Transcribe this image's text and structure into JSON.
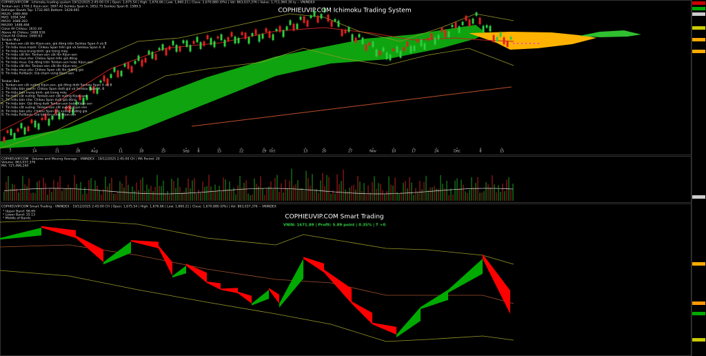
{
  "header": {
    "ichimoku_info": "COPHIEUVIP.COM - Ichimoku trading system  19/12/2025 2:45:00 CH  |  Open: 1,675.54  |  High: 1,676.66  |  Low: 1,660.21  |  Close: 1,670.880 (0%)  |  Vol: 863,037,376  |  Value: 1,711,960.30 ty  --  VNINDEX"
  },
  "ichimoku": {
    "title": "COPHIEUVIP.COM Ichimoku Trading System",
    "info_lines": [
      "Tenkan-sen: 1700.1  Kijun-sen: 1697.42  Senkou Span A: 1652.75  Senkou Span B: 1589.5",
      "Bollinger Bands Top: 1732.065  Bottom: 1628.691",
      "MA20: 1680.468",
      "MA5: 1694.544",
      "MA10: 1688.283",
      "MA200: 1488.484",
      "Close All Chikou: 1631.44",
      "Above All Chikou: 1688.916",
      "Cloud All Chikou: 1660.63",
      "Tenkan Mua",
      "1. Tenkan-sen cắt lên Kijun-sen, giá đóng trên Senkou Span A và B",
      "2. Tín hiệu mua mạnh: Chikou Span trên giá và Senkou Span A, B",
      "3. Tín hiệu mua trung bình: giá trong mây",
      "4. Tín hiệu cắt lên: Tenkan-sen cắt lên Kijun-sen",
      "5. Tín hiệu mua nhẹ: Chikou Span trên giá đóng",
      "6. Tín hiệu mua: Giá đóng trên Tenkan-sen hoặc Kijun-sen",
      "7. Tín hiệu cắt lên: Tenkan-sen cắt lên Kijun-sen",
      "8. Tín hiệu mua yếu: Chikou Span cắt lên đường giá",
      "9. Tín hiệu Pullback: Giá chạm vùng Kijun-sen",
      "Tenkan Ban",
      "1. Tenkan-sen cắt xuống Kijun-sen, giá đóng dưới Senkou Span A và B",
      "2. Tín hiệu bán mạnh: Chikou Span dưới giá và Senkou Span A, B",
      "3. Tín hiệu bán trung bình: giá trong mây",
      "4. Tín hiệu cắt xuống: Tenkan-sen cắt xuống Kijun-sen",
      "5. Tín hiệu bán nhẹ: Chikou Span dưới giá đóng",
      "6. Tín hiệu bán: Giá đóng dưới Tenkan-sen hoặc Kijun-sen",
      "7. Tín hiệu cắt xuống: Tenkan-sen cắt xuống Kijun-sen",
      "8. Tín hiệu bán yếu: Chikou Span cắt xuống đường giá",
      "9. Tín hiệu Pullback: Giá bật lên vùng Kijun-sen"
    ],
    "x_axis": [
      "7",
      "14",
      "21",
      "28",
      "Aug",
      "11",
      "18",
      "25",
      "Sep",
      "8",
      "15",
      "22",
      "29",
      "Oct",
      "13",
      "20",
      "27",
      "Nov",
      "10",
      "17",
      "24",
      "Dec",
      "8",
      "15"
    ]
  },
  "volume": {
    "title": "COPHIEUVIP.COM - Volume and Moving Average - VNINDEX - 19/12/2025 2:45:00 CH | MA Period: 20",
    "volume": "Volume: 863,037,376",
    "ma": "MA: 727,496,240"
  },
  "smart": {
    "header": "COPHIEUVIP.COM Smart Trading - VNINDEX - 19/12/2025 2:45:00 CH | Open: 1,675.54 | High: 1,676.66 | Low: 1,660.21 | Close: 1,670.880 (0%) | Vol: 863,037,376 -- VNINDEX",
    "legend": [
      "* Upper Band: 98.69",
      "* Lower Band: 35.13",
      "* Middle of Bands"
    ],
    "title": "COPHIEUVIP.COM Smart Trading",
    "status": "VNIN: 1671.89 | Profit: 5.89 point | 0.35% | T +0"
  }
}
